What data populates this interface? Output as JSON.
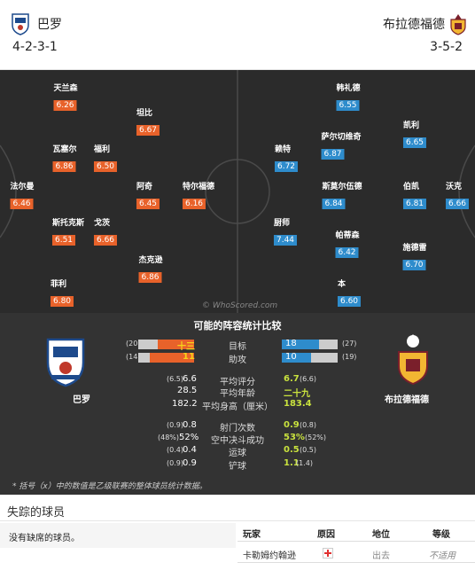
{
  "home": {
    "name": "巴罗",
    "formation": "4-2-3-1"
  },
  "away": {
    "name": "布拉德福德",
    "formation": "3-5-2"
  },
  "home_players": [
    {
      "name": "天兰森",
      "rating": "6.26"
    },
    {
      "name": "瓦塞尔",
      "rating": "6.86"
    },
    {
      "name": "法尔曼",
      "rating": "6.46"
    },
    {
      "name": "斯托克斯",
      "rating": "6.51"
    },
    {
      "name": "菲利",
      "rating": "6.80"
    },
    {
      "name": "福利",
      "rating": "6.50"
    },
    {
      "name": "戈茨",
      "rating": "6.66"
    },
    {
      "name": "坦比",
      "rating": "6.67"
    },
    {
      "name": "阿奇",
      "rating": "6.45"
    },
    {
      "name": "杰克逊",
      "rating": "6.86"
    },
    {
      "name": "特尔福德",
      "rating": "6.16"
    }
  ],
  "away_players": [
    {
      "name": "韩礼德",
      "rating": "6.55"
    },
    {
      "name": "萨尔切维奇",
      "rating": "6.87"
    },
    {
      "name": "赖特",
      "rating": "6.72"
    },
    {
      "name": "斯莫尔伍德",
      "rating": "6.84"
    },
    {
      "name": "厨师",
      "rating": "7.44"
    },
    {
      "name": "帕蒂森",
      "rating": "6.42"
    },
    {
      "name": "本",
      "rating": "6.60"
    },
    {
      "name": "凯利",
      "rating": "6.65"
    },
    {
      "name": "伯凯",
      "rating": "6.81"
    },
    {
      "name": "施德雷",
      "rating": "6.70"
    },
    {
      "name": "沃克",
      "rating": "6.66"
    }
  ],
  "watermark": "© WhoScored.com",
  "stats": {
    "title": "可能的阵容统计比较",
    "bars": [
      {
        "label": "目标",
        "home": "十三",
        "home_paren": "(20)",
        "home_frac": 0.65,
        "away": "18",
        "away_paren": "(27)",
        "away_frac": 0.67
      },
      {
        "label": "助攻",
        "home": "11",
        "home_paren": "(14)",
        "home_frac": 0.79,
        "away": "10",
        "away_paren": "(19)",
        "away_frac": 0.53
      }
    ],
    "rows1": [
      {
        "label": "平均评分",
        "home_paren": "(6.5)",
        "home": "6.6",
        "away": "6.7",
        "away_paren": "(6.6)"
      },
      {
        "label": "平均年龄",
        "home_paren": "",
        "home": "28.5",
        "away": "二十九",
        "away_paren": ""
      },
      {
        "label": "平均身高（厘米）",
        "home_paren": "",
        "home": "182.2",
        "away": "183.4",
        "away_paren": ""
      }
    ],
    "rows2": [
      {
        "label": "射门次数",
        "home_paren": "(0.9)",
        "home": "0.8",
        "away": "0.9",
        "away_paren": "(0.8)"
      },
      {
        "label": "空中决斗成功",
        "home_paren": "(48%)",
        "home": "52%",
        "away": "53%",
        "away_paren": "(52%)"
      },
      {
        "label": "运球",
        "home_paren": "(0.4)",
        "home": "0.4",
        "away": "0.5",
        "away_paren": "(0.5)"
      },
      {
        "label": "铲球",
        "home_paren": "(0.9)",
        "home": "0.9",
        "away": "1.1",
        "away_paren": "(1.4)"
      }
    ],
    "note": "* 括号（x）中的数值是乙级联赛的整体球员统计数据。"
  },
  "missing": {
    "title": "失踪的球员",
    "home_text": "没有缺席的球员。",
    "headers": {
      "player": "玩家",
      "reason": "原因",
      "status": "地位",
      "level": "等级"
    },
    "rows": [
      {
        "player": "卡勒姆约翰逊",
        "status": "出去",
        "level": "不适用"
      }
    ]
  },
  "colors": {
    "home": "#e8622a",
    "away": "#2e8ccc",
    "pitch": "#2b2b2b",
    "stats_bg": "#333333"
  }
}
